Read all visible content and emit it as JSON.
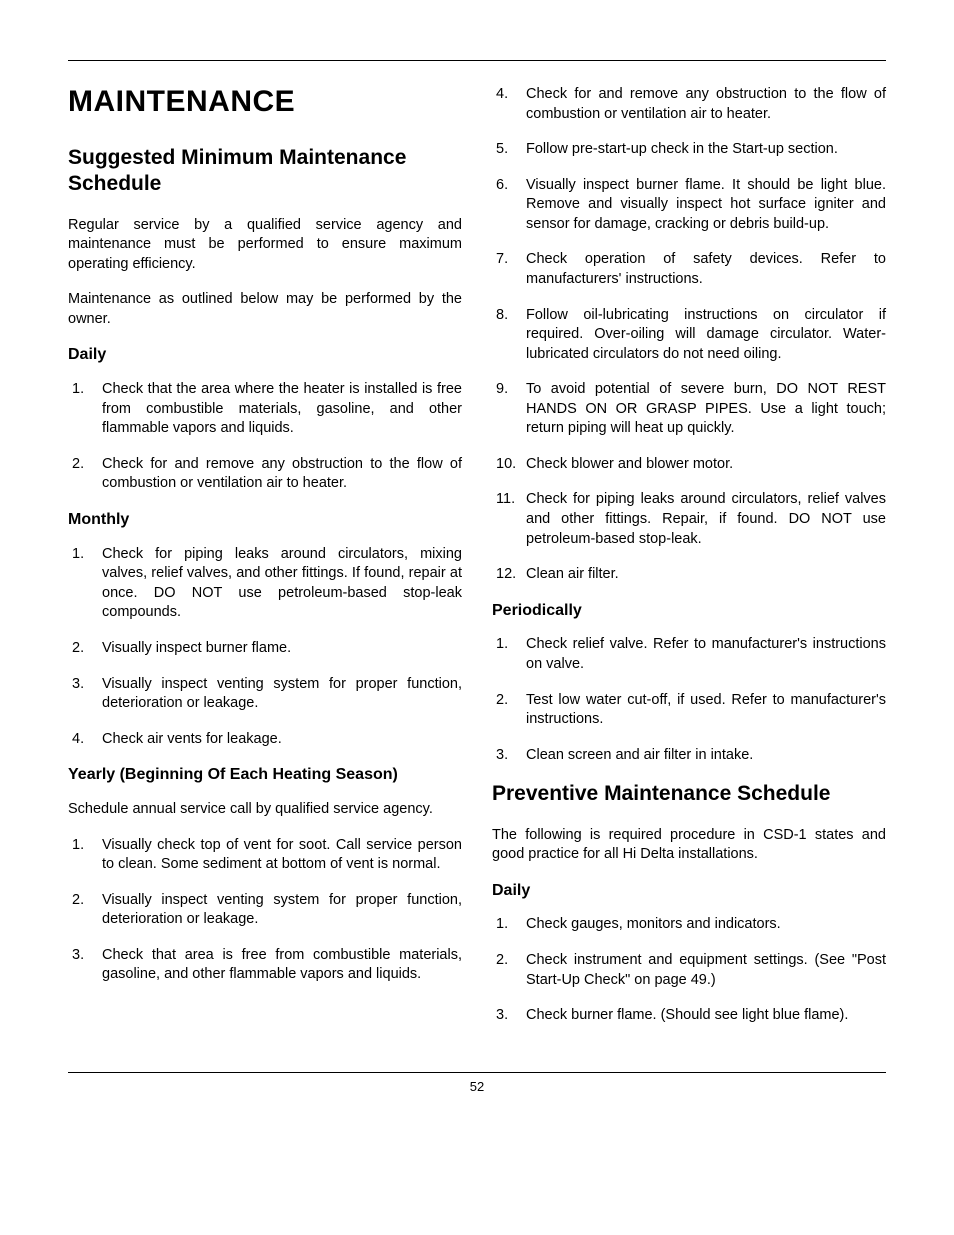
{
  "page_number": "52",
  "main_title": "MAINTENANCE",
  "section1": {
    "heading": "Suggested Minimum Maintenance Schedule",
    "intro1": "Regular service by a qualified service agency and maintenance must be performed to ensure maximum operating efficiency.",
    "intro2": "Maintenance as outlined below may be performed by the owner.",
    "daily_heading": "Daily",
    "daily_items": [
      "Check that the area where the heater is installed is free from combustible materials, gasoline, and other flammable vapors and liquids.",
      "Check for and remove any obstruction to the flow of combustion or ventilation air to heater."
    ],
    "monthly_heading": "Monthly",
    "monthly_items": [
      "Check for piping leaks around circulators, mixing valves, relief valves, and other fittings. If found, repair at once. DO NOT use petroleum-based stop-leak compounds.",
      "Visually inspect burner flame.",
      "Visually inspect venting system for proper function, deterioration or leakage.",
      "Check air vents for leakage."
    ],
    "yearly_heading": "Yearly (Beginning Of Each Heating Season)",
    "yearly_intro": "Schedule annual service call by qualified service agency.",
    "yearly_items_left": [
      "Visually check top of vent for soot. Call service person to clean. Some sediment at bottom of vent is normal.",
      "Visually inspect venting system for proper function, deterioration or leakage.",
      "Check that area is free from combustible materials, gasoline, and other flammable vapors and liquids."
    ],
    "yearly_items_right": [
      "Check for and remove any obstruction to the flow of combustion or ventilation air to heater.",
      "Follow pre-start-up check in the Start-up section.",
      "Visually inspect burner flame. It should be light blue. Remove and visually inspect hot surface igniter and sensor for damage, cracking or debris build-up.",
      "Check operation of safety devices. Refer to manufacturers' instructions.",
      "Follow oil-lubricating instructions on circulator if required. Over-oiling will damage circulator. Water-lubricated circulators do not need oiling.",
      "To avoid potential of severe burn, DO NOT REST HANDS ON OR GRASP PIPES. Use a light touch; return piping will heat up quickly.",
      "Check blower and blower motor.",
      "Check for piping leaks around circulators, relief valves and other fittings. Repair, if found. DO NOT use petroleum-based stop-leak.",
      "Clean air filter."
    ],
    "periodically_heading": "Periodically",
    "periodically_items": [
      "Check relief valve. Refer to manufacturer's instructions on valve.",
      "Test low water cut-off, if used. Refer to manufacturer's instructions.",
      "Clean screen and air filter in intake."
    ]
  },
  "section2": {
    "heading": "Preventive Maintenance Schedule",
    "intro": "The following is required procedure in CSD-1 states and good practice for all Hi Delta installations.",
    "daily_heading": "Daily",
    "daily_items": [
      "Check gauges, monitors and indicators.",
      "Check instrument and equipment settings. (See \"Post Start-Up Check\" on page 49.)",
      "Check burner flame. (Should see light blue flame)."
    ]
  }
}
